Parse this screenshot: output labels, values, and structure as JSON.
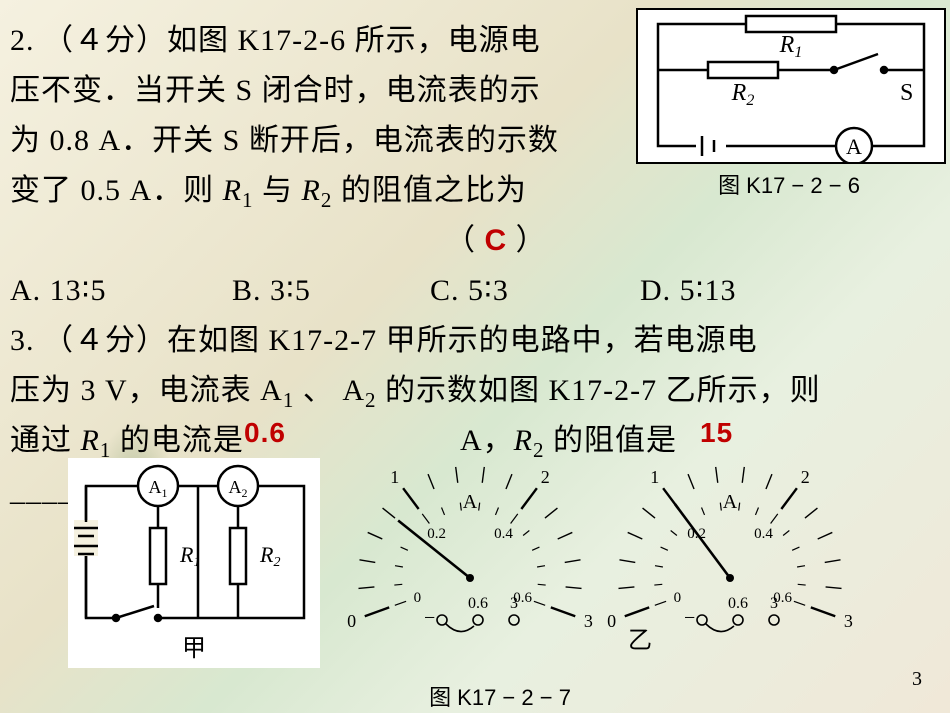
{
  "q2": {
    "line1_pre": "2.   （４分）如图 K17-2-6 所示，电源电",
    "line2": "压不变．当开关 S 闭合时，电流表的示",
    "line3": "为 0.8 A．开关 S 断开后，电流表的示数",
    "line4_pre": "变了 0.5 A．则 ",
    "line4_r1": "R",
    "line4_r1sub": "1",
    "line4_mid": " 与 ",
    "line4_r2": "R",
    "line4_r2sub": "2",
    "line4_post": " 的阻值之比为",
    "paren_open": "（  ",
    "paren_close": "  ）",
    "answer2": "C",
    "optA": "A.  13∶5",
    "optB": "B.  3∶5",
    "optC": "C.  5∶3",
    "optD": "D.  5∶13",
    "fig2_R1": "R",
    "fig2_R1s": "1",
    "fig2_R2": "R",
    "fig2_R2s": "2",
    "fig2_S": "S",
    "fig2_A": "A",
    "fig2_caption": "图 K17 − 2 − 6"
  },
  "q3": {
    "line1": "3.   （４分）在如图 K17-2-7 甲所示的电路中，若电源电",
    "line2_pre": "压为 3 V，电流表 A",
    "line2_s1": "1",
    "line2_mid": " 、 A",
    "line2_s2": "2",
    "line2_post": " 的示数如图 K17-2-7 乙所示，则",
    "line3_pre": "通过 ",
    "line3_R": "R",
    "line3_Rs": "1",
    "line3_mid": " 的电流是",
    "ans_I": "0.6",
    "line3_A": "A，",
    "line3_R2": "R",
    "line3_R2s": "2",
    "line3_post": " 的阻值是",
    "ans_R": "15",
    "line3_end": "",
    "blank": "______",
    "fig3a_A1": "A",
    "fig3a_A1s": "1",
    "fig3a_A2": "A",
    "fig3a_A2s": "2",
    "fig3a_R1": "R",
    "fig3a_R1s": "1",
    "fig3a_R2": "R",
    "fig3a_R2s": "2",
    "fig3a_label": "甲",
    "fig3b_label": "乙",
    "fig3_caption": "图 K17 − 2 − 7",
    "meter_unitA": "A",
    "meter_outer": [
      "0",
      "1",
      "2",
      "3"
    ],
    "meter_inner": [
      "0",
      "0.2",
      "0.4",
      "0.6"
    ],
    "range_lo": "0.6",
    "range_hi": "3",
    "range_dash": "−"
  },
  "page_num": "3",
  "colors": {
    "ink": "#000000",
    "answer": "#c00000",
    "paper": "#ffffff"
  }
}
